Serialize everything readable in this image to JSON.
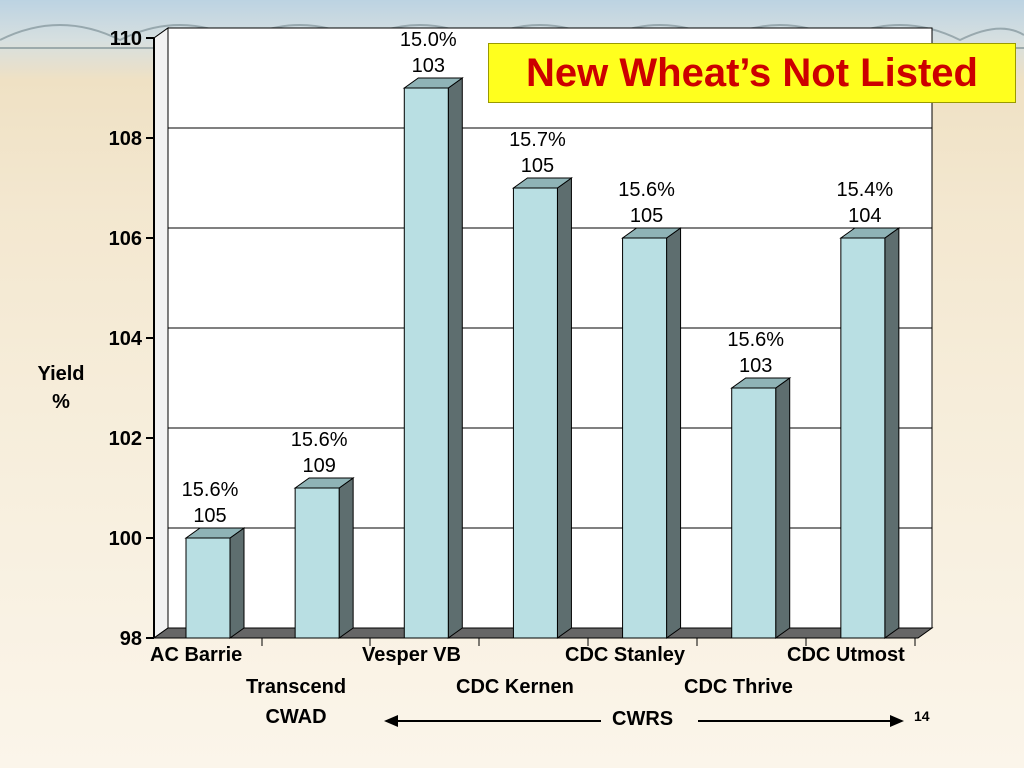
{
  "slide": {
    "title": "New Wheat’s Not Listed",
    "page_number": "14",
    "group_label": "CWRS",
    "colors": {
      "title_bg": "#ffff1e",
      "title_text": "#cc0000",
      "bar_front": "#b9dfe3",
      "bar_side": "#5e6e6f"
    }
  },
  "chart_data": {
    "type": "bar",
    "title": "",
    "ylabel": "Yield\n%",
    "ylim": [
      98,
      110
    ],
    "yticks": [
      98,
      100,
      102,
      104,
      106,
      108,
      110
    ],
    "grid": true,
    "categories": [
      "AC Barrie",
      "Transcend\nCWAD",
      "Vesper VB",
      "CDC Kernen",
      "CDC Stanley",
      "CDC Thrive",
      "CDC Utmost"
    ],
    "values": [
      100,
      101,
      109,
      107,
      106,
      103,
      106
    ],
    "annotations": [
      [
        "15.6%",
        "105"
      ],
      [
        "15.6%",
        "109"
      ],
      [
        "15.0%",
        "103"
      ],
      [
        "15.7%",
        "105"
      ],
      [
        "15.6%",
        "105"
      ],
      [
        "15.6%",
        "103"
      ],
      [
        "15.4%",
        "104"
      ]
    ]
  }
}
